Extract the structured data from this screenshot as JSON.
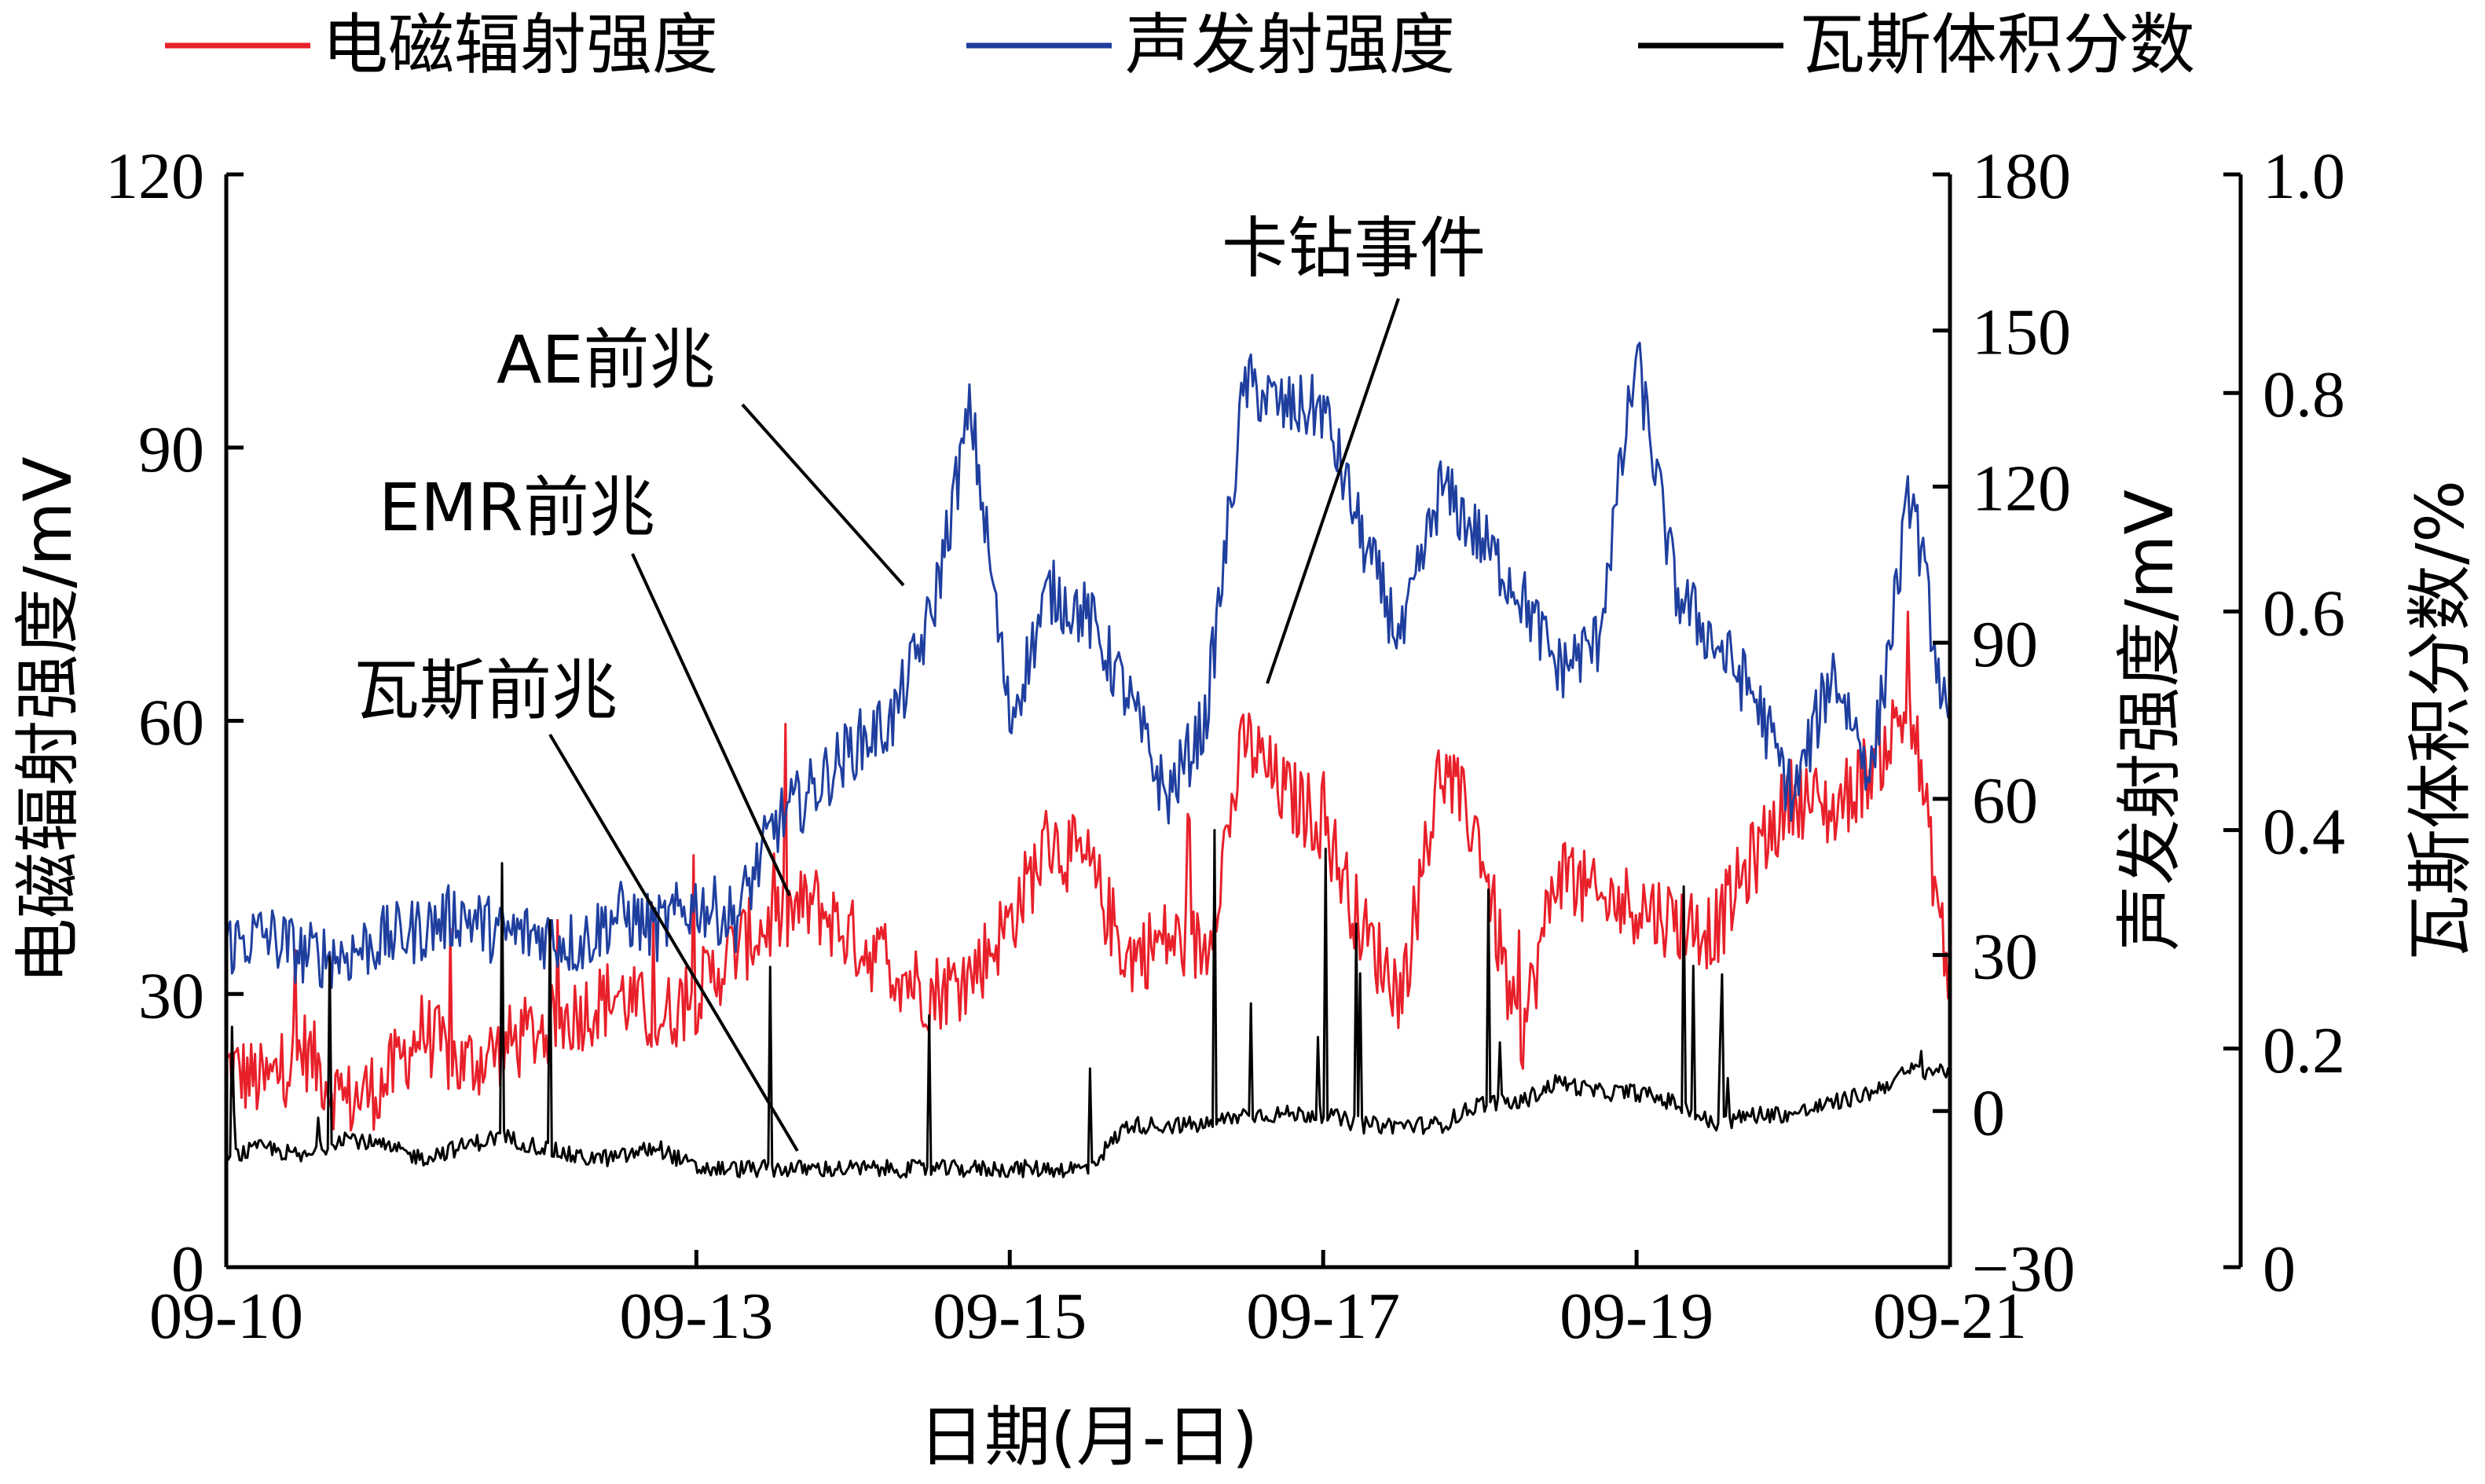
{
  "chart_data": {
    "type": "line",
    "xlabel": "日期(月-日)",
    "x_range": [
      "09-10",
      "09-21"
    ],
    "x_ticks": [
      "09-10",
      "09-13",
      "09-15",
      "09-17",
      "09-19",
      "09-21"
    ],
    "x_tick_days": [
      0,
      3,
      5,
      7,
      9,
      11
    ],
    "axes": {
      "y_left": {
        "label": "电磁辐射强度/mV",
        "lim": [
          0,
          120
        ],
        "ticks": [
          "0",
          "30",
          "60",
          "90",
          "120"
        ]
      },
      "y_right1": {
        "label": "声发射强度/mV",
        "lim": [
          -30,
          180
        ],
        "ticks": [
          "−30",
          "0",
          "30",
          "60",
          "90",
          "120",
          "150",
          "180"
        ]
      },
      "y_right2": {
        "label": "瓦斯体积分数/%",
        "lim": [
          0,
          1.0
        ],
        "ticks": [
          "0",
          "0.2",
          "0.4",
          "0.6",
          "0.8",
          "1.0"
        ]
      }
    },
    "legend": {
      "placement": "top"
    },
    "series": [
      {
        "name": "电磁辐射强度",
        "color": "#e8202a",
        "axis": "y_left",
        "x_days": [
          0,
          0.25,
          0.5,
          0.75,
          1,
          1.25,
          1.5,
          1.75,
          2,
          2.25,
          2.5,
          2.75,
          3,
          3.25,
          3.5,
          3.75,
          4,
          4.25,
          4.5,
          4.75,
          5,
          5.25,
          5.5,
          5.75,
          6,
          6.25,
          6.5,
          6.75,
          7,
          7.25,
          7.5,
          7.75,
          8,
          8.25,
          8.5,
          8.75,
          9,
          9.25,
          9.5,
          9.75,
          10,
          10.25,
          10.5,
          10.75,
          11
        ],
        "values": [
          22,
          20,
          24,
          18,
          20,
          26,
          22,
          24,
          26,
          28,
          30,
          27,
          30,
          35,
          38,
          40,
          36,
          33,
          30,
          32,
          38,
          47,
          44,
          34,
          36,
          35,
          58,
          52,
          49,
          37,
          30,
          55,
          47,
          24,
          44,
          40,
          40,
          38,
          37,
          45,
          52,
          50,
          55,
          62,
          30
        ]
      },
      {
        "name": "声发射强度",
        "color": "#1f3f9f",
        "axis": "y_right1",
        "x_days": [
          0,
          0.25,
          0.5,
          0.75,
          1,
          1.25,
          1.5,
          1.75,
          2,
          2.25,
          2.5,
          2.75,
          3,
          3.25,
          3.5,
          3.75,
          4,
          4.25,
          4.5,
          4.75,
          5,
          5.25,
          5.5,
          5.75,
          6,
          6.25,
          6.5,
          6.75,
          7,
          7.25,
          7.5,
          7.75,
          8,
          8.25,
          8.5,
          8.75,
          9,
          9.25,
          9.5,
          9.75,
          10,
          10.25,
          10.5,
          10.75,
          11
        ],
        "values": [
          32,
          34,
          30,
          30,
          33,
          35,
          38,
          34,
          34,
          32,
          38,
          35,
          40,
          37,
          55,
          62,
          70,
          75,
          95,
          135,
          75,
          100,
          95,
          80,
          60,
          75,
          140,
          135,
          135,
          110,
          90,
          120,
          110,
          100,
          85,
          90,
          145,
          100,
          90,
          80,
          60,
          85,
          65,
          120,
          70
        ]
      },
      {
        "name": "瓦斯体积分数",
        "color": "#000000",
        "axis": "y_right2",
        "x_days": [
          0,
          0.25,
          0.5,
          0.75,
          1,
          1.25,
          1.5,
          1.75,
          2,
          2.25,
          2.5,
          2.75,
          3,
          3.25,
          3.5,
          3.75,
          4,
          4.25,
          4.5,
          4.75,
          5,
          5.25,
          5.5,
          5.75,
          6,
          6.25,
          6.5,
          6.75,
          7,
          7.25,
          7.5,
          7.75,
          8,
          8.25,
          8.5,
          8.75,
          9,
          9.25,
          9.5,
          9.75,
          10,
          10.25,
          10.5,
          10.75,
          11
        ],
        "values": [
          0.1,
          0.11,
          0.1,
          0.12,
          0.11,
          0.1,
          0.11,
          0.12,
          0.11,
          0.1,
          0.1,
          0.11,
          0.09,
          0.09,
          0.09,
          0.09,
          0.09,
          0.09,
          0.09,
          0.09,
          0.09,
          0.09,
          0.09,
          0.13,
          0.13,
          0.13,
          0.14,
          0.14,
          0.14,
          0.13,
          0.13,
          0.13,
          0.15,
          0.15,
          0.17,
          0.16,
          0.16,
          0.15,
          0.13,
          0.14,
          0.14,
          0.15,
          0.16,
          0.18,
          0.18
        ]
      }
    ],
    "annotations": [
      {
        "text": "卡钻事件"
      },
      {
        "text": "AE前兆"
      },
      {
        "text": "EMR前兆"
      },
      {
        "text": "瓦斯前兆"
      }
    ]
  }
}
